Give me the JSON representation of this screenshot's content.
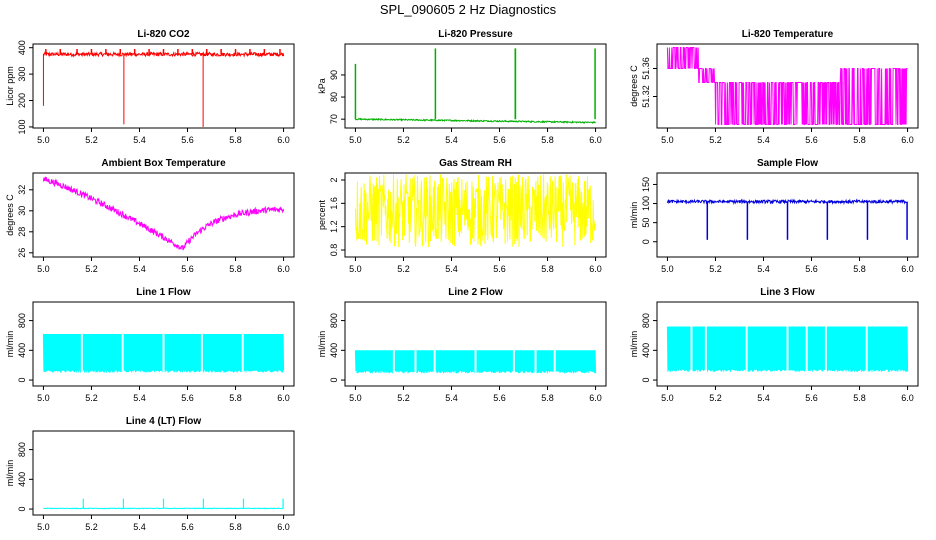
{
  "figure_title": "SPL_090605  2 Hz Diagnostics",
  "chart_data": [
    {
      "type": "line",
      "title": "Li-820 CO2",
      "ylabel": "Licor ppm",
      "color": "#ff0000",
      "xlim": [
        5.0,
        6.0
      ],
      "ylim": [
        96,
        414
      ],
      "xticks": [
        "5.0",
        "5.2",
        "5.4",
        "5.6",
        "5.8",
        "6.0"
      ],
      "yticks": [
        100,
        200,
        300,
        400
      ],
      "kind": "co2"
    },
    {
      "type": "line",
      "title": "Li-820 Pressure",
      "ylabel": "kPa",
      "color": "#00b000",
      "xlim": [
        5.0,
        6.0
      ],
      "ylim": [
        66,
        104
      ],
      "xticks": [
        "5.0",
        "5.2",
        "5.4",
        "5.6",
        "5.8",
        "6.0"
      ],
      "yticks": [
        70,
        80,
        90
      ],
      "kind": "pressure"
    },
    {
      "type": "line",
      "title": "Li-820 Temperature",
      "ylabel": "degrees C",
      "color": "#ff00ff",
      "xlim": [
        5.0,
        6.0
      ],
      "ylim": [
        51.275,
        51.395
      ],
      "xticks": [
        "5.0",
        "5.2",
        "5.4",
        "5.6",
        "5.8",
        "6.0"
      ],
      "yticks": [
        51.32,
        51.36
      ],
      "kind": "temp"
    },
    {
      "type": "line",
      "title": "Ambient Box Temperature",
      "ylabel": "degrees C",
      "color": "#ff00ff",
      "xlim": [
        5.0,
        6.0
      ],
      "ylim": [
        25.6,
        33.6
      ],
      "xticks": [
        "5.0",
        "5.2",
        "5.4",
        "5.6",
        "5.8",
        "6.0"
      ],
      "yticks": [
        26,
        28,
        30,
        32
      ],
      "kind": "ambient"
    },
    {
      "type": "line",
      "title": "Gas Stream RH",
      "ylabel": "percent",
      "color": "#ffff00",
      "xlim": [
        5.0,
        6.0
      ],
      "ylim": [
        0.68,
        2.12
      ],
      "xticks": [
        "5.0",
        "5.2",
        "5.4",
        "5.6",
        "5.8",
        "6.0"
      ],
      "yticks": [
        0.8,
        1.2,
        1.6,
        2.0
      ],
      "kind": "rh"
    },
    {
      "type": "line",
      "title": "Sample Flow",
      "ylabel": "ml/min",
      "color": "#0000dd",
      "xlim": [
        5.0,
        6.0
      ],
      "ylim": [
        -40,
        180
      ],
      "xticks": [
        "5.0",
        "5.2",
        "5.4",
        "5.6",
        "5.8",
        "6.0"
      ],
      "yticks": [
        0,
        50,
        100,
        150
      ],
      "kind": "sample"
    },
    {
      "type": "line",
      "title": "Line 1 Flow",
      "ylabel": "ml/min",
      "color": "#00ffff",
      "xlim": [
        5.0,
        6.0
      ],
      "ylim": [
        -80,
        1050
      ],
      "xticks": [
        "5.0",
        "5.2",
        "5.4",
        "5.6",
        "5.8",
        "6.0"
      ],
      "yticks": [
        0,
        400,
        800
      ],
      "kind": "line1"
    },
    {
      "type": "line",
      "title": "Line 2 Flow",
      "ylabel": "ml/min",
      "color": "#00ffff",
      "xlim": [
        5.0,
        6.0
      ],
      "ylim": [
        -80,
        1050
      ],
      "xticks": [
        "5.0",
        "5.2",
        "5.4",
        "5.6",
        "5.8",
        "6.0"
      ],
      "yticks": [
        0,
        400,
        800
      ],
      "kind": "line2"
    },
    {
      "type": "line",
      "title": "Line 3 Flow",
      "ylabel": "ml/min",
      "color": "#00ffff",
      "xlim": [
        5.0,
        6.0
      ],
      "ylim": [
        -80,
        1050
      ],
      "xticks": [
        "5.0",
        "5.2",
        "5.4",
        "5.6",
        "5.8",
        "6.0"
      ],
      "yticks": [
        0,
        400,
        800
      ],
      "kind": "line3"
    },
    {
      "type": "line",
      "title": "Line 4 (LT) Flow",
      "ylabel": "ml/min",
      "color": "#00ffff",
      "xlim": [
        5.0,
        6.0
      ],
      "ylim": [
        -80,
        1050
      ],
      "xticks": [
        "5.0",
        "5.2",
        "5.4",
        "5.6",
        "5.8",
        "6.0"
      ],
      "yticks": [
        0,
        400,
        800
      ],
      "kind": "line4"
    }
  ]
}
